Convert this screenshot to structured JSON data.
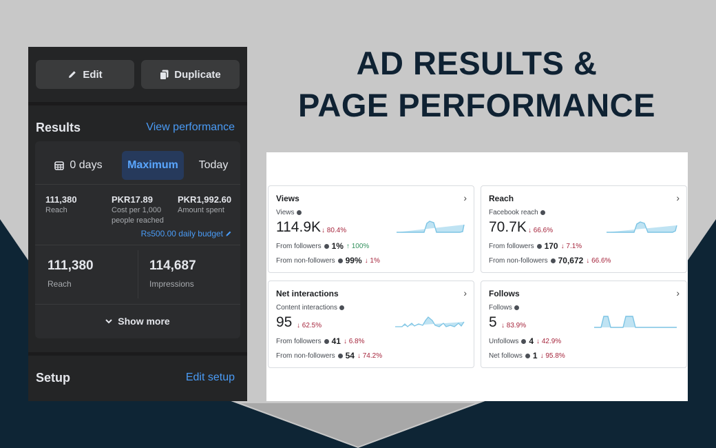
{
  "heading": {
    "line1": "AD RESULTS &",
    "line2": "PAGE PERFORMANCE"
  },
  "ad_panel": {
    "edit_label": "Edit",
    "duplicate_label": "Duplicate",
    "results": {
      "title": "Results",
      "view_link": "View performance",
      "segments": {
        "days": "0 days",
        "maximum": "Maximum",
        "today": "Today"
      },
      "metrics": [
        {
          "value": "111,380",
          "label": "Reach"
        },
        {
          "value": "PKR17.89",
          "label": "Cost per 1,000 people reached"
        },
        {
          "value": "PKR1,992.60",
          "label": "Amount spent"
        }
      ],
      "budget": "Rs500.00 daily budget",
      "big": [
        {
          "value": "111,380",
          "label": "Reach"
        },
        {
          "value": "114,687",
          "label": "Impressions"
        }
      ],
      "show_more": "Show more"
    },
    "setup": {
      "title": "Setup",
      "edit_link": "Edit setup"
    }
  },
  "page_performance": {
    "cards": [
      {
        "title": "Views",
        "sub": "Views",
        "value": "114.9K",
        "change": "↓ 80.4%",
        "rows": [
          {
            "label": "From followers",
            "value": "1%",
            "change": "↑ 100%",
            "dir": "up"
          },
          {
            "label": "From non-followers",
            "value": "99%",
            "change": "↓ 1%",
            "dir": "down"
          }
        ]
      },
      {
        "title": "Reach",
        "sub": "Facebook reach",
        "value": "70.7K",
        "change": "↓ 66.6%",
        "rows": [
          {
            "label": "From followers",
            "value": "170",
            "change": "↓ 7.1%",
            "dir": "down"
          },
          {
            "label": "From non-followers",
            "value": "70,672",
            "change": "↓ 66.6%",
            "dir": "down"
          }
        ]
      },
      {
        "title": "Net interactions",
        "sub": "Content interactions",
        "value": "95",
        "change": "↓ 62.5%",
        "rows": [
          {
            "label": "From followers",
            "value": "41",
            "change": "↓ 6.8%",
            "dir": "down"
          },
          {
            "label": "From non-followers",
            "value": "54",
            "change": "↓ 74.2%",
            "dir": "down"
          }
        ]
      },
      {
        "title": "Follows",
        "sub": "Follows",
        "value": "5",
        "change": "↓ 83.9%",
        "rows": [
          {
            "label": "Unfollows",
            "value": "4",
            "change": "↓ 42.9%",
            "dir": "down"
          },
          {
            "label": "Net follows",
            "value": "1",
            "change": "↓ 95.8%",
            "dir": "down"
          }
        ]
      }
    ]
  },
  "colors": {
    "heading": "#0f2233",
    "link": "#4a9bf5",
    "decline": "#a5243b",
    "growth": "#2f8f5b",
    "spark_line": "#7cc4e4",
    "spark_fill": "#bfe3f3"
  },
  "icons": [
    "pencil-icon",
    "duplicate-icon",
    "calendar-icon",
    "chevron-down-icon",
    "chevron-right-icon",
    "info-dot-icon"
  ]
}
